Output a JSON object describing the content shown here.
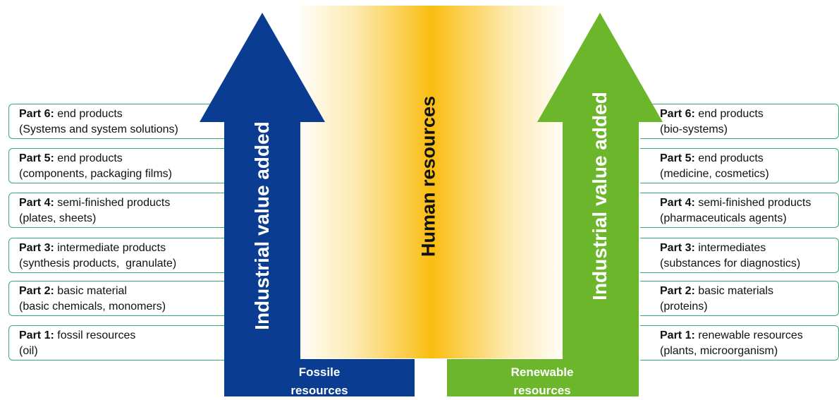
{
  "center": {
    "label": "Human resources"
  },
  "left_arrow": {
    "label": "Industrial value added",
    "bottom_line1": "Fossile",
    "bottom_line2": "resources",
    "color": "#0a3d91"
  },
  "right_arrow": {
    "label": "Industrial value added",
    "bottom_line1": "Renewable",
    "bottom_line2": "resources",
    "color": "#6bb62a"
  },
  "left_items": [
    {
      "part": "Part 6:",
      "title": "end products",
      "detail": "(Systems and system solutions)"
    },
    {
      "part": "Part 5:",
      "title": "end products",
      "detail": "(components, packaging films)"
    },
    {
      "part": "Part 4:",
      "title": "semi-finished products",
      "detail": "(plates, sheets)"
    },
    {
      "part": "Part 3:",
      "title": "intermediate products",
      "detail": "(synthesis products,  granulate)"
    },
    {
      "part": "Part 2:",
      "title": "basic material",
      "detail": "(basic chemicals, monomers)"
    },
    {
      "part": "Part 1:",
      "title": "fossil resources",
      "detail": "(oil)"
    }
  ],
  "right_items": [
    {
      "part": "Part 6:",
      "title": "end products",
      "detail": "(bio-systems)"
    },
    {
      "part": "Part 5:",
      "title": "end products",
      "detail": "(medicine, cosmetics)"
    },
    {
      "part": "Part 4:",
      "title": "semi-finished products",
      "detail": "(pharmaceuticals agents)"
    },
    {
      "part": "Part 3:",
      "title": "intermediates",
      "detail": "(substances for diagnostics)"
    },
    {
      "part": "Part 2:",
      "title": "basic materials",
      "detail": "(proteins)"
    },
    {
      "part": "Part 1:",
      "title": "renewable resources",
      "detail": "(plants, microorganism)"
    }
  ]
}
